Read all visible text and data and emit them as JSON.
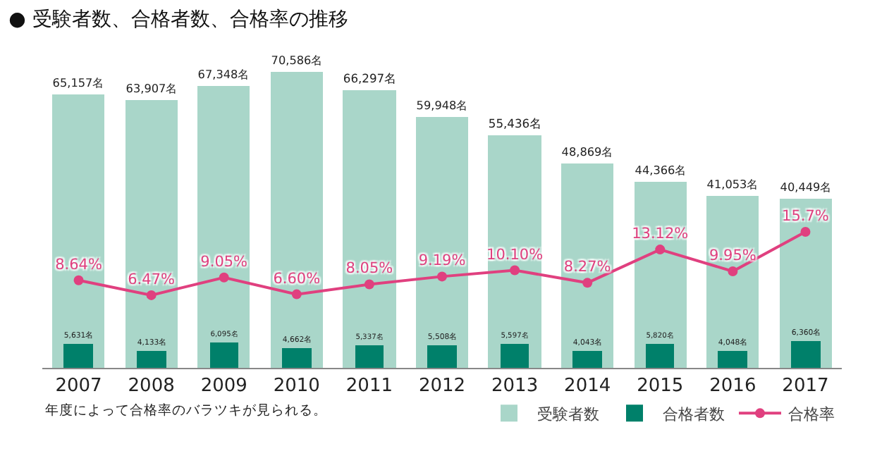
{
  "chart_data": {
    "type": "bar",
    "title": "● 受験者数、合格者数、合格率の推移",
    "categories": [
      "2007",
      "2008",
      "2009",
      "2010",
      "2011",
      "2012",
      "2013",
      "2014",
      "2015",
      "2016",
      "2017"
    ],
    "series": [
      {
        "name": "受験者数",
        "color": "#a9d6c9",
        "values": [
          65157,
          63907,
          67348,
          70586,
          66297,
          59948,
          55436,
          48869,
          44366,
          41053,
          40449
        ],
        "value_labels": [
          "65,157名",
          "63,907名",
          "67,348名",
          "70,586名",
          "66,297名",
          "59,948名",
          "55,436名",
          "48,869名",
          "44,366名",
          "41,053名",
          "40,449名"
        ]
      },
      {
        "name": "合格者数",
        "type": "bar",
        "color": "#00806a",
        "values": [
          5631,
          4133,
          6095,
          4662,
          5337,
          5508,
          5597,
          4043,
          5820,
          4048,
          6360
        ],
        "value_labels": [
          "5,631名",
          "4,133名",
          "6,095名",
          "4,662名",
          "5,337名",
          "5,508名",
          "5,597名",
          "4,043名",
          "5,820名",
          "4,048名",
          "6,360名"
        ]
      },
      {
        "name": "合格率",
        "type": "line",
        "axis": "y2",
        "color": "#e0407f",
        "values": [
          8.64,
          6.47,
          9.05,
          6.6,
          8.05,
          9.19,
          10.1,
          8.27,
          13.12,
          9.95,
          15.7
        ],
        "value_labels": [
          "8.64%",
          "6.47%",
          "9.05%",
          "6.60%",
          "8.05%",
          "9.19%",
          "10.10%",
          "8.27%",
          "13.12%",
          "9.95%",
          "15.7%"
        ]
      }
    ],
    "tick_labels": "x",
    "legend": "bottom right",
    "marker": "circle",
    "line_style": "solid",
    "annotations": [
      "年度によって合格率のバラツキが見られる。"
    ]
  }
}
